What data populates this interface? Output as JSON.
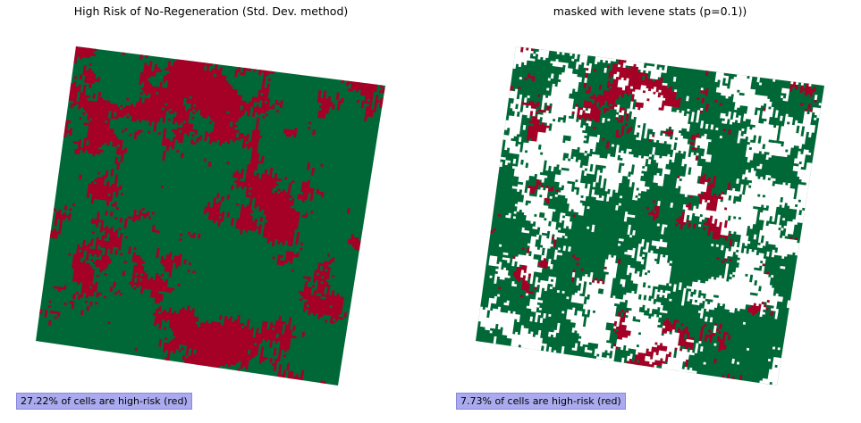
{
  "colors": {
    "low_risk": "#006837",
    "high_risk": "#a50026",
    "masked": "#ffffff",
    "note_bg": "#aaaaee",
    "note_border": "#8888dd"
  },
  "panels": [
    {
      "title": "High Risk of No-Regeneration (Std. Dev. method)",
      "note": "27.22% of cells are high-risk (red)",
      "high_risk_fraction": 0.2722,
      "masked_fraction": 0
    },
    {
      "title": "masked with levene stats (p=0.1))",
      "note": "7.73% of cells are high-risk (red)",
      "high_risk_fraction": 0.0773,
      "masked_fraction": 0.38
    }
  ]
}
